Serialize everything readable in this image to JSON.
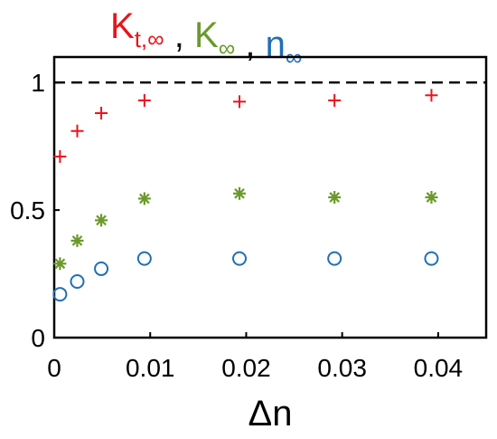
{
  "chart_data": {
    "type": "scatter",
    "title_parts": [
      {
        "text": "K",
        "sub": "t,∞",
        "color": "#e8141c"
      },
      {
        "text": " , ",
        "sub": "",
        "color": "#111111"
      },
      {
        "text": "K",
        "sub": "∞",
        "color": "#6a9a2a"
      },
      {
        "text": " , ",
        "sub": "",
        "color": "#111111"
      },
      {
        "text": "n",
        "sub": "∞",
        "color": "#1f6fb4"
      }
    ],
    "xlabel": "Δn",
    "ylabel": "",
    "xlim": [
      0,
      0.045
    ],
    "ylim": [
      0,
      1.1
    ],
    "xticks": [
      0,
      0.01,
      0.02,
      0.03,
      0.04
    ],
    "xtick_labels": [
      "0",
      "0.01",
      "0.02",
      "0.03",
      "0.04"
    ],
    "yticks": [
      0,
      0.5,
      1
    ],
    "ytick_labels": [
      "0",
      "0.5",
      "1"
    ],
    "grid": false,
    "reference_line": {
      "y": 1,
      "style": "dashed",
      "color": "#000000"
    },
    "series": [
      {
        "marker": "plus",
        "color": "#e8141c",
        "x": [
          0.0006,
          0.0024,
          0.0049,
          0.0094,
          0.0193,
          0.0292,
          0.0393
        ],
        "y": [
          0.71,
          0.81,
          0.88,
          0.93,
          0.925,
          0.93,
          0.95
        ]
      },
      {
        "marker": "asterisk",
        "color": "#6a9a2a",
        "x": [
          0.0006,
          0.0024,
          0.0049,
          0.0094,
          0.0193,
          0.0292,
          0.0393
        ],
        "y": [
          0.29,
          0.38,
          0.46,
          0.545,
          0.565,
          0.55,
          0.55
        ]
      },
      {
        "marker": "circle",
        "color": "#1f6fb4",
        "x": [
          0.0006,
          0.0024,
          0.0049,
          0.0094,
          0.0193,
          0.0292,
          0.0393
        ],
        "y": [
          0.17,
          0.22,
          0.27,
          0.31,
          0.31,
          0.31,
          0.31
        ]
      }
    ]
  }
}
